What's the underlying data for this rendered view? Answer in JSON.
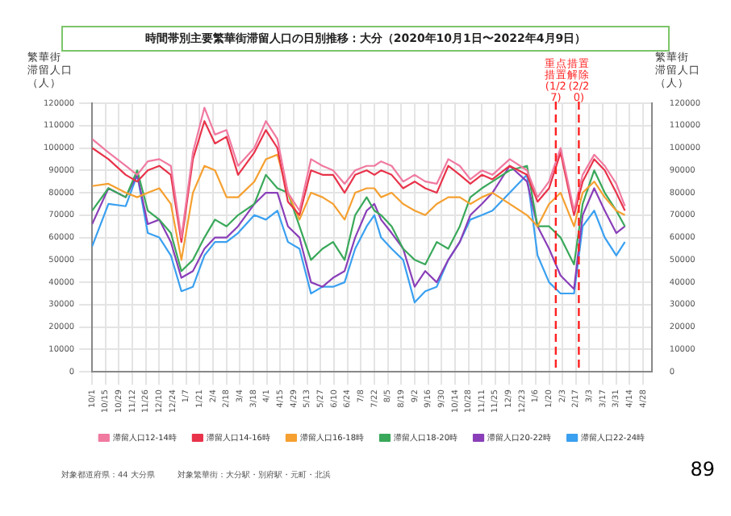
{
  "chart_data": {
    "type": "line",
    "title": "時間帯別主要繁華街滞留人口の日別推移：大分（2020年10月1日〜2022年4月9日）",
    "ylabel": "繁華街滞留人口（人）",
    "y2label": "繁華街滞留人口（人）",
    "x": [
      "2020-10-01",
      "2020-10-18",
      "2020-11-05",
      "2020-11-17",
      "2020-11-28",
      "2020-12-10",
      "2020-12-22",
      "2021-01-02",
      "2021-01-14",
      "2021-01-26",
      "2021-02-06",
      "2021-02-18",
      "2021-03-02",
      "2021-03-19",
      "2021-03-31",
      "2021-04-12",
      "2021-04-23",
      "2021-05-05",
      "2021-05-17",
      "2021-05-29",
      "2021-06-09",
      "2021-06-21",
      "2021-07-02",
      "2021-07-14",
      "2021-07-22",
      "2021-07-29",
      "2021-08-09",
      "2021-08-21",
      "2021-09-02",
      "2021-09-13",
      "2021-09-25",
      "2021-10-07",
      "2021-10-19",
      "2021-10-30",
      "2021-11-11",
      "2021-11-22",
      "2021-12-10",
      "2021-12-28",
      "2022-01-08",
      "2022-01-20",
      "2022-02-01",
      "2022-02-15",
      "2022-02-24",
      "2022-03-08",
      "2022-03-19",
      "2022-03-31",
      "2022-04-09"
    ],
    "series": [
      {
        "name": "滞留人口12-14時",
        "color": "#f07aa0",
        "values": [
          104000,
          98000,
          92000,
          88000,
          94000,
          95000,
          92000,
          60000,
          98000,
          118000,
          106000,
          108000,
          92000,
          100000,
          112000,
          104000,
          80000,
          72000,
          95000,
          92000,
          90000,
          84000,
          90000,
          92000,
          92000,
          94000,
          92000,
          85000,
          88000,
          85000,
          84000,
          95000,
          92000,
          86000,
          90000,
          88000,
          95000,
          90000,
          78000,
          85000,
          100000,
          72000,
          88000,
          97000,
          92000,
          84000,
          74000
        ]
      },
      {
        "name": "滞留人口14-16時",
        "color": "#e8334a",
        "values": [
          100000,
          95000,
          88000,
          85000,
          90000,
          92000,
          88000,
          58000,
          95000,
          112000,
          102000,
          105000,
          88000,
          98000,
          108000,
          100000,
          76000,
          70000,
          90000,
          88000,
          88000,
          80000,
          88000,
          90000,
          88000,
          90000,
          88000,
          82000,
          85000,
          82000,
          80000,
          92000,
          88000,
          84000,
          88000,
          86000,
          92000,
          88000,
          76000,
          82000,
          98000,
          70000,
          85000,
          95000,
          90000,
          80000,
          72000
        ]
      },
      {
        "name": "滞留人口16-18時",
        "color": "#f5a030",
        "values": [
          83000,
          84000,
          80000,
          78000,
          80000,
          82000,
          75000,
          50000,
          80000,
          92000,
          90000,
          78000,
          78000,
          85000,
          95000,
          97000,
          80000,
          68000,
          80000,
          78000,
          75000,
          68000,
          80000,
          82000,
          82000,
          78000,
          80000,
          75000,
          72000,
          70000,
          75000,
          78000,
          78000,
          75000,
          78000,
          80000,
          75000,
          70000,
          65000,
          75000,
          80000,
          65000,
          80000,
          85000,
          78000,
          72000,
          70000
        ]
      },
      {
        "name": "滞留人口18-20時",
        "color": "#3aa85a",
        "values": [
          72000,
          82000,
          78000,
          90000,
          72000,
          68000,
          62000,
          45000,
          50000,
          60000,
          68000,
          65000,
          70000,
          75000,
          88000,
          82000,
          80000,
          65000,
          50000,
          55000,
          58000,
          50000,
          70000,
          78000,
          72000,
          70000,
          65000,
          55000,
          50000,
          48000,
          58000,
          55000,
          65000,
          78000,
          82000,
          85000,
          90000,
          92000,
          65000,
          65000,
          60000,
          48000,
          75000,
          90000,
          80000,
          72000,
          65000
        ]
      },
      {
        "name": "滞留人口20-22時",
        "color": "#8a3fb8",
        "values": [
          66000,
          82000,
          78000,
          88000,
          66000,
          68000,
          58000,
          42000,
          45000,
          55000,
          60000,
          60000,
          65000,
          75000,
          80000,
          80000,
          65000,
          60000,
          40000,
          38000,
          42000,
          45000,
          60000,
          72000,
          75000,
          68000,
          62000,
          55000,
          38000,
          45000,
          40000,
          50000,
          58000,
          70000,
          75000,
          80000,
          92000,
          85000,
          65000,
          55000,
          43000,
          37000,
          70000,
          82000,
          72000,
          62000,
          65000
        ]
      },
      {
        "name": "滞留人口22-24時",
        "color": "#3aa0f0",
        "values": [
          56000,
          75000,
          74000,
          88000,
          62000,
          60000,
          52000,
          36000,
          38000,
          52000,
          58000,
          58000,
          62000,
          70000,
          68000,
          72000,
          58000,
          55000,
          35000,
          38000,
          38000,
          40000,
          55000,
          65000,
          70000,
          60000,
          55000,
          50000,
          31000,
          36000,
          38000,
          50000,
          58000,
          68000,
          70000,
          72000,
          80000,
          88000,
          52000,
          40000,
          35000,
          35000,
          65000,
          72000,
          60000,
          52000,
          58000
        ]
      }
    ],
    "xlim": [
      "2020-10-01",
      "2022-05-07"
    ],
    "xticks": [
      {
        "value": "2020-10-01",
        "label": "10/1"
      },
      {
        "value": "2020-10-15",
        "label": "10/15"
      },
      {
        "value": "2020-10-29",
        "label": "10/29"
      },
      {
        "value": "2020-11-12",
        "label": "11/12"
      },
      {
        "value": "2020-11-26",
        "label": "11/26"
      },
      {
        "value": "2020-12-10",
        "label": "12/10"
      },
      {
        "value": "2020-12-24",
        "label": "12/24"
      },
      {
        "value": "2021-01-07",
        "label": "1/7"
      },
      {
        "value": "2021-01-21",
        "label": "1/21"
      },
      {
        "value": "2021-02-04",
        "label": "2/4"
      },
      {
        "value": "2021-02-18",
        "label": "2/18"
      },
      {
        "value": "2021-03-04",
        "label": "3/4"
      },
      {
        "value": "2021-03-18",
        "label": "3/18"
      },
      {
        "value": "2021-04-01",
        "label": "4/1"
      },
      {
        "value": "2021-04-15",
        "label": "4/15"
      },
      {
        "value": "2021-04-29",
        "label": "4/29"
      },
      {
        "value": "2021-05-13",
        "label": "5/13"
      },
      {
        "value": "2021-05-27",
        "label": "5/27"
      },
      {
        "value": "2021-06-10",
        "label": "6/10"
      },
      {
        "value": "2021-06-24",
        "label": "6/24"
      },
      {
        "value": "2021-07-08",
        "label": "7/8"
      },
      {
        "value": "2021-07-22",
        "label": "7/22"
      },
      {
        "value": "2021-08-05",
        "label": "8/5"
      },
      {
        "value": "2021-08-19",
        "label": "8/19"
      },
      {
        "value": "2021-09-02",
        "label": "9/2"
      },
      {
        "value": "2021-09-16",
        "label": "9/16"
      },
      {
        "value": "2021-09-30",
        "label": "9/30"
      },
      {
        "value": "2021-10-14",
        "label": "10/14"
      },
      {
        "value": "2021-10-28",
        "label": "10/28"
      },
      {
        "value": "2021-11-11",
        "label": "11/11"
      },
      {
        "value": "2021-11-25",
        "label": "11/25"
      },
      {
        "value": "2021-12-09",
        "label": "12/9"
      },
      {
        "value": "2021-12-23",
        "label": "12/23"
      },
      {
        "value": "2022-01-06",
        "label": "1/6"
      },
      {
        "value": "2022-01-20",
        "label": "1/20"
      },
      {
        "value": "2022-02-03",
        "label": "2/3"
      },
      {
        "value": "2022-02-17",
        "label": "2/17"
      },
      {
        "value": "2022-03-03",
        "label": "3/3"
      },
      {
        "value": "2022-03-17",
        "label": "3/17"
      },
      {
        "value": "2022-03-31",
        "label": "3/31"
      },
      {
        "value": "2022-04-14",
        "label": "4/14"
      },
      {
        "value": "2022-04-28",
        "label": "4/28"
      }
    ],
    "ylim": [
      0,
      120000
    ],
    "yticks": [
      0,
      10000,
      20000,
      30000,
      40000,
      50000,
      60000,
      70000,
      80000,
      90000,
      100000,
      110000,
      120000
    ],
    "y2lim": [
      0,
      120000
    ],
    "y2ticks": [
      0,
      10000,
      20000,
      30000,
      40000,
      50000,
      60000,
      70000,
      80000,
      90000,
      100000,
      110000,
      120000
    ],
    "ref_lines": [
      {
        "axis": "x",
        "value": "2022-01-27",
        "label": "重点措置(1/27)",
        "color": "#ff2020",
        "line_style": "dashed"
      },
      {
        "axis": "x",
        "value": "2022-02-20",
        "label": "措置解除(2/20)",
        "color": "#ff2020",
        "line_style": "dashed"
      }
    ],
    "annotations": [
      "対象都道府県：44 大分県",
      "対象繁華街：大分駅・別府駅・元町・北浜",
      "89"
    ],
    "grid": true,
    "legend": "bottom",
    "marker": "none",
    "line_style": "solid"
  }
}
